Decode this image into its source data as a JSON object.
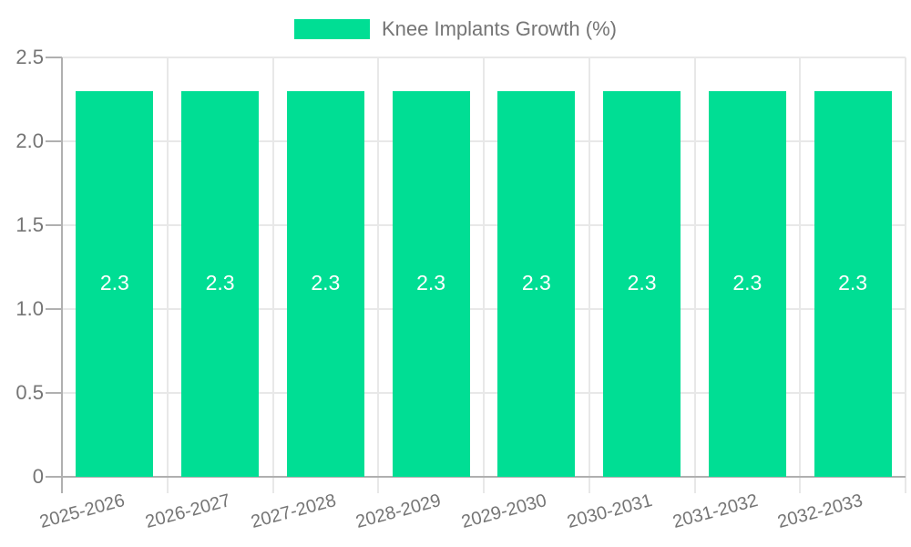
{
  "chart_data": {
    "type": "bar",
    "title": "",
    "legend": {
      "label": "Knee Implants Growth (%)",
      "position": "top"
    },
    "categories": [
      "2025-2026",
      "2026-2027",
      "2027-2028",
      "2028-2029",
      "2029-2030",
      "2030-2031",
      "2031-2032",
      "2032-2033"
    ],
    "series": [
      {
        "name": "Knee Implants Growth (%)",
        "values": [
          2.3,
          2.3,
          2.3,
          2.3,
          2.3,
          2.3,
          2.3,
          2.3
        ]
      }
    ],
    "bar_value_labels": [
      "2.3",
      "2.3",
      "2.3",
      "2.3",
      "2.3",
      "2.3",
      "2.3",
      "2.3"
    ],
    "xlabel": "",
    "ylabel": "",
    "ylim": [
      0,
      2.5
    ],
    "yticks": [
      {
        "value": 0,
        "label": "0"
      },
      {
        "value": 0.5,
        "label": "0.5"
      },
      {
        "value": 1,
        "label": "1.0"
      },
      {
        "value": 1.5,
        "label": "1.5"
      },
      {
        "value": 2,
        "label": "2.0"
      },
      {
        "value": 2.5,
        "label": "2.5"
      }
    ],
    "grid": true,
    "colors": {
      "bar": "#00DE94",
      "grid": "#e8e8e8",
      "axis": "#b0b0b0",
      "tick_text": "#757575",
      "bar_label_text": "#ffffff"
    }
  }
}
